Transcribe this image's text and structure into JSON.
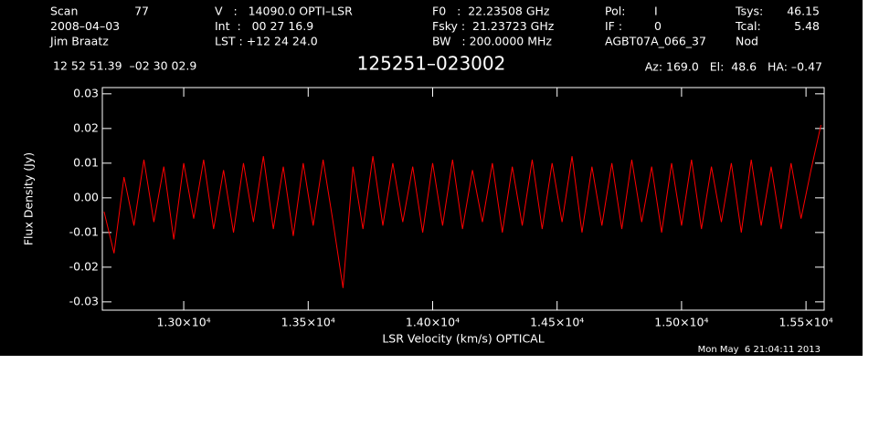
{
  "chart_data": {
    "type": "line",
    "title": "125251–023002",
    "header": [
      [
        "Scan",
        "77",
        "V   :   14090.0 OPTI–LSR",
        "F0   :  22.23508 GHz",
        "Pol:",
        "I",
        "Tsys:",
        "46.15"
      ],
      [
        "2008–04–03",
        "Int  :   00 27 16.9",
        "Fsky :  21.23723 GHz",
        "IF :",
        "0",
        "Tcal:",
        "5.48"
      ],
      [
        "Jim Braatz",
        "LST : +12 24 24.0",
        "BW   : 200.0000 MHz",
        "AGBT07A_066_37",
        "Nod"
      ]
    ],
    "coordinates": "12 52 51.39  –02 30 02.9",
    "pointing": "Az: 169.0   El:  48.6   HA: –0.47",
    "timestamp": "Mon May  6 21:04:11 2013",
    "xlabel": "LSR Velocity (km/s) OPTICAL",
    "ylabel": "Flux Density (Jy)",
    "xlim": [
      12673,
      15573
    ],
    "ylim": [
      -0.0324,
      0.0318
    ],
    "xticks": [
      {
        "value": 13000,
        "label": "1.30×10⁴"
      },
      {
        "value": 13500,
        "label": "1.35×10⁴"
      },
      {
        "value": 14000,
        "label": "1.40×10⁴"
      },
      {
        "value": 14500,
        "label": "1.45×10⁴"
      },
      {
        "value": 15000,
        "label": "1.50×10⁴"
      },
      {
        "value": 15500,
        "label": "1.55×10⁴"
      }
    ],
    "yticks": [
      0.03,
      0.02,
      0.01,
      {
        "value": 0,
        "label": "0.00"
      },
      -0.01,
      -0.02,
      -0.03
    ],
    "series": [
      {
        "color": "#ff0000",
        "x": [
          12680,
          12720,
          12760,
          12800,
          12840,
          12880,
          12920,
          12960,
          13000,
          13040,
          13080,
          13120,
          13160,
          13200,
          13240,
          13280,
          13320,
          13360,
          13400,
          13440,
          13480,
          13520,
          13560,
          13600,
          13640,
          13680,
          13720,
          13760,
          13800,
          13840,
          13880,
          13920,
          13960,
          14000,
          14040,
          14080,
          14120,
          14160,
          14200,
          14240,
          14280,
          14320,
          14360,
          14400,
          14440,
          14480,
          14520,
          14560,
          14600,
          14640,
          14680,
          14720,
          14760,
          14800,
          14840,
          14880,
          14920,
          14960,
          15000,
          15040,
          15080,
          15120,
          15160,
          15200,
          15240,
          15280,
          15320,
          15360,
          15400,
          15440,
          15480,
          15520,
          15560
        ],
        "values": [
          -0.004,
          -0.016,
          0.006,
          -0.008,
          0.011,
          -0.007,
          0.009,
          -0.012,
          0.01,
          -0.006,
          0.011,
          -0.009,
          0.008,
          -0.01,
          0.01,
          -0.007,
          0.012,
          -0.009,
          0.009,
          -0.011,
          0.01,
          -0.008,
          0.011,
          -0.007,
          -0.026,
          0.009,
          -0.009,
          0.012,
          -0.008,
          0.01,
          -0.007,
          0.009,
          -0.01,
          0.01,
          -0.008,
          0.011,
          -0.009,
          0.008,
          -0.007,
          0.01,
          -0.01,
          0.009,
          -0.008,
          0.011,
          -0.009,
          0.01,
          -0.007,
          0.012,
          -0.01,
          0.009,
          -0.008,
          0.01,
          -0.009,
          0.011,
          -0.007,
          0.009,
          -0.01,
          0.01,
          -0.008,
          0.011,
          -0.009,
          0.009,
          -0.007,
          0.01,
          -0.01,
          0.011,
          -0.008,
          0.009,
          -0.009,
          0.01,
          -0.006,
          0.008,
          0.021
        ]
      }
    ]
  }
}
